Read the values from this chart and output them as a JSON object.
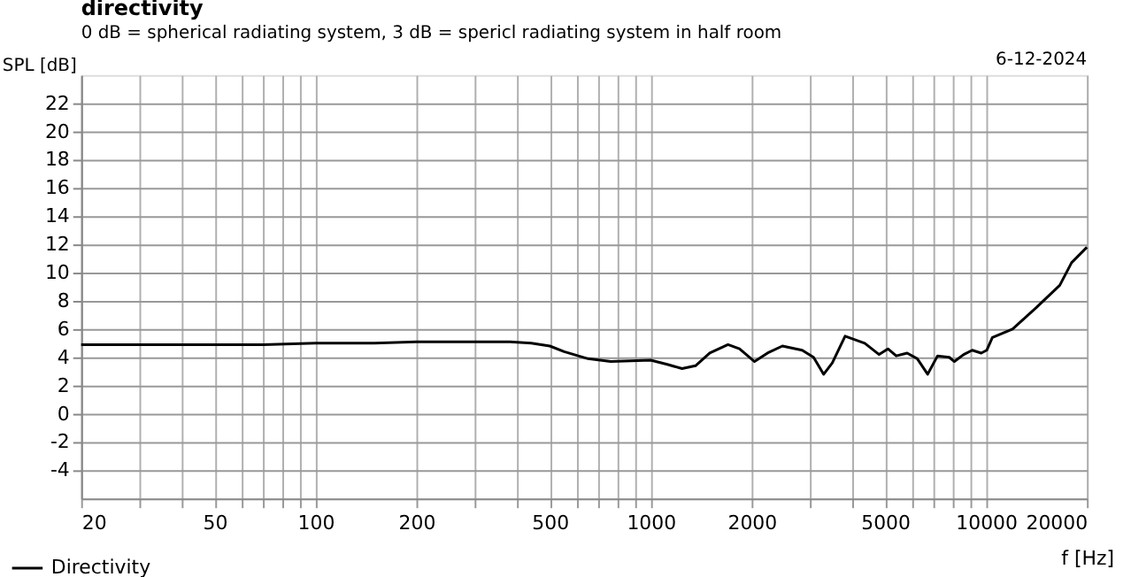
{
  "chart_data": {
    "type": "line",
    "title": "directivity",
    "subtitle": "0 dB = spherical radiating system, 3 dB = spericl radiating system in half room",
    "xlabel": "f [Hz]",
    "ylabel": "SPL [dB]",
    "annotations": [
      "6-12-2024"
    ],
    "log": "x",
    "grid": true,
    "legend": "bottom left",
    "marker": "none",
    "line_style": "solid",
    "xlim": [
      20,
      20000
    ],
    "ylim": [
      -6,
      24
    ],
    "xticks": [
      20,
      {
        "value": 30,
        "label": null
      },
      {
        "value": 40,
        "label": null
      },
      50,
      {
        "value": 60,
        "label": null
      },
      {
        "value": 70,
        "label": null
      },
      {
        "value": 80,
        "label": null
      },
      {
        "value": 90,
        "label": null
      },
      100,
      200,
      {
        "value": 300,
        "label": null
      },
      {
        "value": 400,
        "label": null
      },
      500,
      {
        "value": 600,
        "label": null
      },
      {
        "value": 700,
        "label": null
      },
      {
        "value": 800,
        "label": null
      },
      {
        "value": 900,
        "label": null
      },
      1000,
      2000,
      {
        "value": 3000,
        "label": null
      },
      {
        "value": 4000,
        "label": null
      },
      5000,
      {
        "value": 6000,
        "label": null
      },
      {
        "value": 7000,
        "label": null
      },
      {
        "value": 8000,
        "label": null
      },
      {
        "value": 9000,
        "label": null
      },
      10000,
      20000
    ],
    "yticks": [
      -4,
      -2,
      0,
      2,
      4,
      6,
      8,
      10,
      12,
      14,
      16,
      18,
      20,
      22
    ],
    "series": [
      {
        "name": "Directivity",
        "color": "#000000",
        "x": [
          20,
          40,
          70,
          100,
          150,
          200,
          300,
          380,
          440,
          500,
          552,
          650,
          760,
          1000,
          1120,
          1240,
          1360,
          1500,
          1700,
          1840,
          2040,
          2230,
          2470,
          2830,
          3060,
          3280,
          3480,
          3800,
          4350,
          4800,
          5100,
          5400,
          5820,
          6240,
          6700,
          7170,
          7770,
          8050,
          8580,
          9100,
          9680,
          10050,
          10450,
          12000,
          14100,
          16600,
          18000,
          20000
        ],
        "values": [
          4.9,
          4.9,
          4.9,
          5.0,
          5.0,
          5.1,
          5.1,
          5.1,
          5.0,
          4.8,
          4.4,
          3.9,
          3.7,
          3.8,
          3.5,
          3.2,
          3.4,
          4.3,
          4.9,
          4.6,
          3.7,
          4.3,
          4.8,
          4.5,
          4.0,
          2.8,
          3.6,
          5.5,
          5.0,
          4.2,
          4.6,
          4.1,
          4.3,
          3.9,
          2.8,
          4.1,
          4.0,
          3.7,
          4.2,
          4.5,
          4.3,
          4.5,
          5.4,
          6.0,
          7.5,
          9.1,
          10.7,
          11.8
        ]
      }
    ]
  }
}
